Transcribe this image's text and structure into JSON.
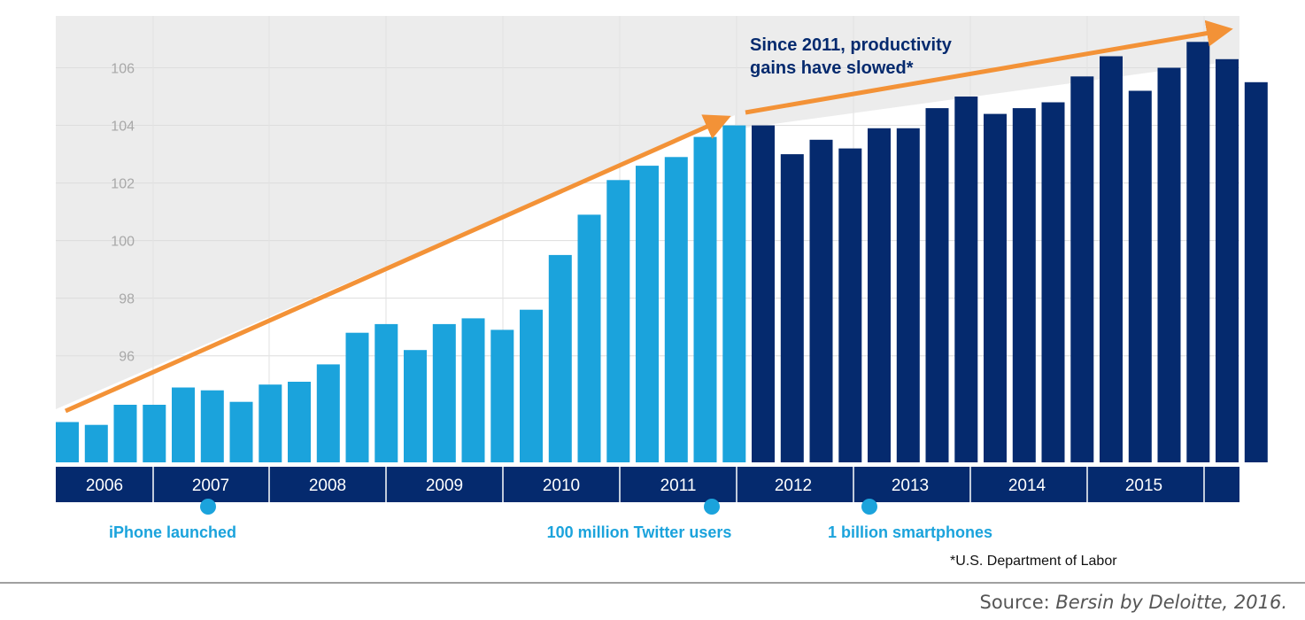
{
  "chart_data": {
    "type": "bar",
    "title": "",
    "xlabel": "",
    "ylabel": "",
    "ylim": [
      92.3,
      107.8
    ],
    "yticks": [
      96,
      98,
      100,
      102,
      104,
      106
    ],
    "grid": true,
    "year_labels": [
      "2006",
      "2007",
      "2008",
      "2009",
      "2010",
      "2011",
      "2012",
      "2013",
      "2014",
      "2015"
    ],
    "series": [
      {
        "name": "",
        "color": "#1ba3dc",
        "values": [
          93.7,
          93.6,
          94.3,
          94.3,
          94.9,
          94.8,
          94.4,
          95.0,
          95.1,
          95.7,
          96.8,
          97.1,
          96.2,
          97.1,
          97.3,
          96.9,
          97.6,
          99.5,
          100.9,
          102.1,
          102.6,
          102.9,
          103.6,
          104.0
        ]
      },
      {
        "name": "",
        "color": "#052a6e",
        "values": [
          104.0,
          103.0,
          103.5,
          103.2,
          103.9,
          103.9,
          104.6,
          105.0,
          104.4,
          104.6,
          104.8,
          105.7,
          106.4,
          105.2,
          106.0,
          106.9,
          106.3,
          105.5
        ]
      }
    ],
    "annotations": {
      "slowdown_line1": "Since 2011, productivity",
      "slowdown_line2": "gains have slowed*",
      "milestones": [
        {
          "label": "iPhone launched",
          "color": "#1ba3dc"
        },
        {
          "label": "100 million Twitter users",
          "color": "#1ba3dc"
        },
        {
          "label": "1 billion smartphones",
          "color": "#1ba3dc"
        }
      ],
      "footnote": "*U.S. Department of Labor",
      "arrow_color": "#f39237"
    }
  },
  "source": {
    "prefix": "Source: ",
    "citation": "Bersin by Deloitte, 2016."
  }
}
